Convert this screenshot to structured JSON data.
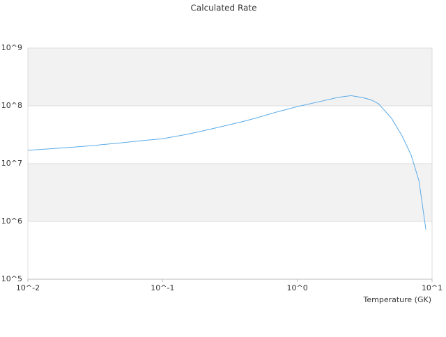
{
  "chart_data": {
    "type": "line",
    "title": "Calculated Rate",
    "x_label": "Temperature (GK)",
    "x": [
      0.01,
      0.02,
      0.03,
      0.05,
      0.07,
      0.1,
      0.15,
      0.2,
      0.3,
      0.4,
      0.5,
      0.7,
      1.0,
      1.5,
      2.0,
      2.5,
      3.0,
      3.5,
      4,
      5,
      6,
      7,
      8,
      9
    ],
    "series": [
      {
        "color": "#5aaae8",
        "values": [
          17000000,
          19000000,
          20500000,
          23000000,
          25000000,
          27000000,
          32000000,
          37000000,
          46000000,
          54000000,
          62000000,
          78000000,
          97000000,
          120000000,
          140000000,
          150000000,
          140000000,
          128000000,
          109000000,
          61000000,
          30000000,
          14000000,
          5000000,
          720000
        ]
      }
    ],
    "xscale": "log",
    "yscale": "log",
    "xlim": [
      0.01,
      10
    ],
    "ylim": [
      100000,
      1000000000
    ],
    "xticks": [
      {
        "value": 0.01,
        "label": "10^-2"
      },
      {
        "value": 0.1,
        "label": "10^-1"
      },
      {
        "value": 1,
        "label": "10^0"
      },
      {
        "value": 10,
        "label": "10^1"
      }
    ],
    "yticks": [
      {
        "value": 100000,
        "label": "10^5"
      },
      {
        "value": 1000000,
        "label": "10^6"
      },
      {
        "value": 10000000,
        "label": "10^7"
      },
      {
        "value": 100000000,
        "label": "10^8"
      },
      {
        "value": 1000000000,
        "label": "10^9"
      }
    ],
    "grid": true
  }
}
